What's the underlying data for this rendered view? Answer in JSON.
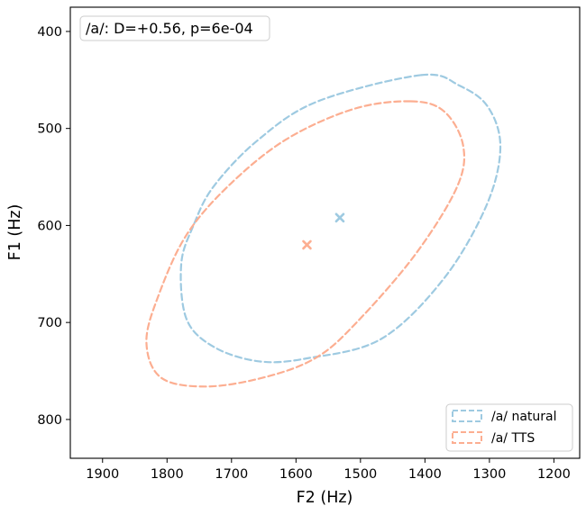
{
  "chart_data": {
    "type": "scatter",
    "annotation": "/a/: D=+0.56, p=6e-04",
    "xlabel": "F2 (Hz)",
    "ylabel": "F1 (Hz)",
    "xlim": [
      1950,
      1160
    ],
    "ylim": [
      840,
      375
    ],
    "x_inverted": true,
    "y_inverted": true,
    "xticks": [
      1900,
      1800,
      1700,
      1600,
      1500,
      1400,
      1300,
      1200
    ],
    "yticks": [
      400,
      500,
      600,
      700,
      800
    ],
    "grid": false,
    "legend_position": "lower right",
    "series": [
      {
        "name": "/a/ natural",
        "color": "#9ecae1",
        "mean": {
          "x": 1532,
          "y": 592
        },
        "ellipse_outline": [
          [
            1406,
            445
          ],
          [
            1346,
            456
          ],
          [
            1302,
            478
          ],
          [
            1283,
            520
          ],
          [
            1305,
            580
          ],
          [
            1371,
            655
          ],
          [
            1468,
            717
          ],
          [
            1583,
            737
          ],
          [
            1658,
            740
          ],
          [
            1728,
            725
          ],
          [
            1770,
            696
          ],
          [
            1778,
            640
          ],
          [
            1759,
            600
          ],
          [
            1728,
            560
          ],
          [
            1659,
            512
          ],
          [
            1566,
            472
          ],
          [
            1406,
            445
          ]
        ]
      },
      {
        "name": "/a/ TTS",
        "color": "#fcae91",
        "mean": {
          "x": 1583,
          "y": 620
        },
        "ellipse_outline": [
          [
            1422,
            472
          ],
          [
            1371,
            482
          ],
          [
            1341,
            517
          ],
          [
            1350,
            560
          ],
          [
            1415,
            630
          ],
          [
            1506,
            700
          ],
          [
            1568,
            736
          ],
          [
            1646,
            756
          ],
          [
            1738,
            766
          ],
          [
            1809,
            757
          ],
          [
            1832,
            720
          ],
          [
            1812,
            670
          ],
          [
            1770,
            610
          ],
          [
            1706,
            560
          ],
          [
            1617,
            512
          ],
          [
            1511,
            480
          ],
          [
            1422,
            472
          ]
        ]
      }
    ]
  }
}
